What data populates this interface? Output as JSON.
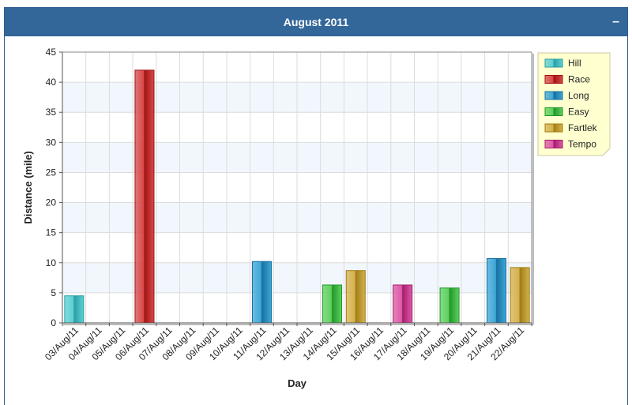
{
  "panel": {
    "title": "August 2011",
    "collapse_label": "–"
  },
  "chart_data": {
    "type": "bar",
    "title": "August 2011",
    "xlabel": "Day",
    "ylabel": "Distance (mile)",
    "ylim": [
      0,
      45
    ],
    "yticks": [
      0,
      5,
      10,
      15,
      20,
      25,
      30,
      35,
      40,
      45
    ],
    "grid": true,
    "legend_position": "top-right",
    "categories": [
      "03/Aug/11",
      "04/Aug/11",
      "05/Aug/11",
      "06/Aug/11",
      "07/Aug/11",
      "08/Aug/11",
      "09/Aug/11",
      "10/Aug/11",
      "11/Aug/11",
      "12/Aug/11",
      "13/Aug/11",
      "14/Aug/11",
      "15/Aug/11",
      "16/Aug/11",
      "17/Aug/11",
      "18/Aug/11",
      "19/Aug/11",
      "20/Aug/11",
      "21/Aug/11",
      "22/Aug/11"
    ],
    "series": [
      {
        "name": "Hill",
        "color": "#5cd0d3",
        "dark": "#2a9ea3",
        "values": [
          4.5,
          null,
          null,
          null,
          null,
          null,
          null,
          null,
          null,
          null,
          null,
          null,
          null,
          null,
          null,
          null,
          null,
          null,
          null,
          null
        ]
      },
      {
        "name": "Race",
        "color": "#d94848",
        "dark": "#a01414",
        "values": [
          null,
          null,
          null,
          42.0,
          null,
          null,
          null,
          null,
          null,
          null,
          null,
          null,
          null,
          null,
          null,
          null,
          null,
          null,
          null,
          null
        ]
      },
      {
        "name": "Long",
        "color": "#3fa7d6",
        "dark": "#1670a0",
        "values": [
          null,
          null,
          null,
          null,
          null,
          null,
          null,
          null,
          10.2,
          null,
          null,
          null,
          null,
          null,
          null,
          null,
          null,
          null,
          10.7,
          null
        ]
      },
      {
        "name": "Easy",
        "color": "#5fd15f",
        "dark": "#22962a",
        "values": [
          null,
          null,
          null,
          null,
          null,
          null,
          null,
          null,
          null,
          null,
          null,
          6.3,
          null,
          null,
          null,
          null,
          5.8,
          null,
          null,
          null
        ]
      },
      {
        "name": "Fartlek",
        "color": "#d6b24e",
        "dark": "#a17d16",
        "values": [
          null,
          null,
          null,
          null,
          null,
          null,
          null,
          null,
          null,
          null,
          null,
          null,
          8.7,
          null,
          null,
          null,
          null,
          null,
          null,
          9.2
        ]
      },
      {
        "name": "Tempo",
        "color": "#dd5aa6",
        "dark": "#a51e6e",
        "values": [
          null,
          null,
          null,
          null,
          null,
          null,
          null,
          null,
          null,
          null,
          null,
          null,
          null,
          null,
          6.3,
          null,
          null,
          null,
          null,
          null
        ]
      }
    ]
  }
}
